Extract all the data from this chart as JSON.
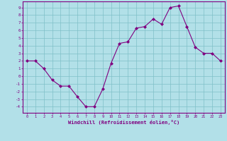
{
  "x": [
    0,
    1,
    2,
    3,
    4,
    5,
    6,
    7,
    8,
    9,
    10,
    11,
    12,
    13,
    14,
    15,
    16,
    17,
    18,
    19,
    20,
    21,
    22,
    23
  ],
  "y": [
    2,
    2,
    1,
    -0.5,
    -1.3,
    -1.3,
    -2.7,
    -4,
    -4,
    -1.7,
    1.7,
    4.3,
    4.5,
    6.3,
    6.5,
    7.5,
    6.8,
    9.0,
    9.2,
    6.5,
    3.8,
    3.0,
    3.0,
    2.0
  ],
  "line_color": "#800080",
  "marker_color": "#800080",
  "bg_color": "#b2e0e8",
  "grid_color": "#7fc0c8",
  "border_color": "#800080",
  "xlabel": "Windchill (Refroidissement éolien,°C)",
  "xlabel_color": "#800080",
  "tick_color": "#800080",
  "xlim": [
    -0.5,
    23.5
  ],
  "ylim": [
    -4.8,
    9.8
  ],
  "yticks": [
    -4,
    -3,
    -2,
    -1,
    0,
    1,
    2,
    3,
    4,
    5,
    6,
    7,
    8,
    9
  ],
  "xticks": [
    0,
    1,
    2,
    3,
    4,
    5,
    6,
    7,
    8,
    9,
    10,
    11,
    12,
    13,
    14,
    15,
    16,
    17,
    18,
    19,
    20,
    21,
    22,
    23
  ]
}
